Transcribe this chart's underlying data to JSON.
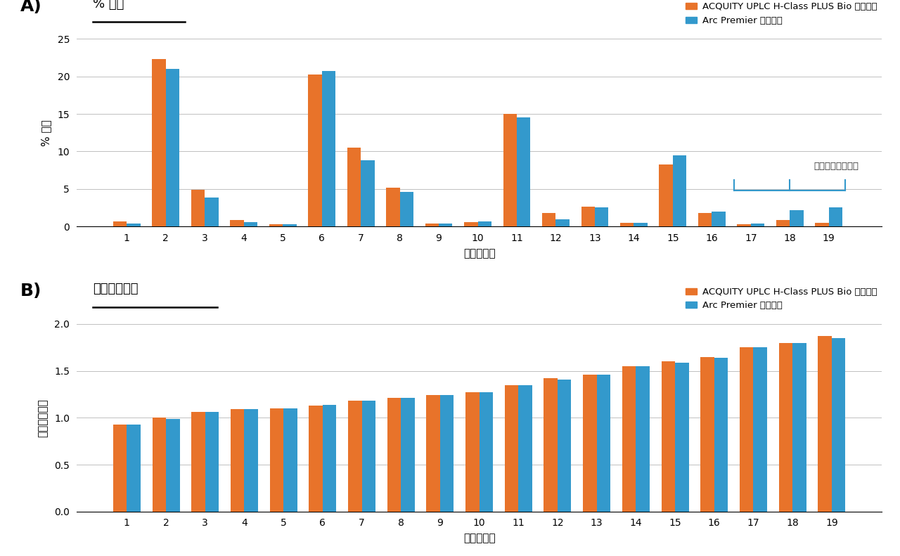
{
  "peak_area_orange": [
    0.7,
    22.3,
    4.9,
    0.9,
    0.3,
    20.3,
    10.5,
    5.2,
    0.4,
    0.6,
    15.0,
    1.8,
    2.6,
    0.5,
    8.3,
    1.8,
    0.3,
    0.9,
    0.5
  ],
  "peak_area_blue": [
    0.4,
    21.0,
    3.9,
    0.6,
    0.3,
    20.7,
    8.8,
    4.6,
    0.4,
    0.7,
    14.5,
    1.0,
    2.5,
    0.5,
    9.5,
    2.0,
    0.4,
    2.2,
    2.5
  ],
  "rel_rt_orange": [
    0.93,
    1.0,
    1.06,
    1.09,
    1.1,
    1.13,
    1.18,
    1.21,
    1.24,
    1.27,
    1.35,
    1.42,
    1.46,
    1.55,
    1.6,
    1.65,
    1.75,
    1.8,
    1.87
  ],
  "rel_rt_blue": [
    0.93,
    0.99,
    1.06,
    1.09,
    1.1,
    1.14,
    1.18,
    1.21,
    1.24,
    1.27,
    1.35,
    1.41,
    1.46,
    1.55,
    1.59,
    1.64,
    1.75,
    1.8,
    1.85
  ],
  "peak_labels": [
    1,
    2,
    3,
    4,
    5,
    6,
    7,
    8,
    9,
    10,
    11,
    12,
    13,
    14,
    15,
    16,
    17,
    18,
    19
  ],
  "orange_color": "#E8732A",
  "blue_color": "#3399CC",
  "legend_orange": "ACQUITY UPLC H-Class PLUS Bio システム",
  "legend_blue": "Arc Premier システム",
  "panel_A_title": "% 面穊",
  "panel_B_title": "相対保持時間",
  "xlabel": "ピーク番号",
  "ylabel_A": "% 面穊",
  "ylabel_B": "相対保持時間",
  "bracket_label": "二重シアル化糖鎖",
  "ylim_A": [
    0.0,
    25.0
  ],
  "yticks_A": [
    0.0,
    5.0,
    10.0,
    15.0,
    20.0,
    25.0
  ],
  "ylim_B": [
    0.0,
    2.0
  ],
  "yticks_B": [
    0.0,
    0.5,
    1.0,
    1.5,
    2.0
  ],
  "background_color": "#FFFFFF",
  "grid_color": "#C0C0C0"
}
